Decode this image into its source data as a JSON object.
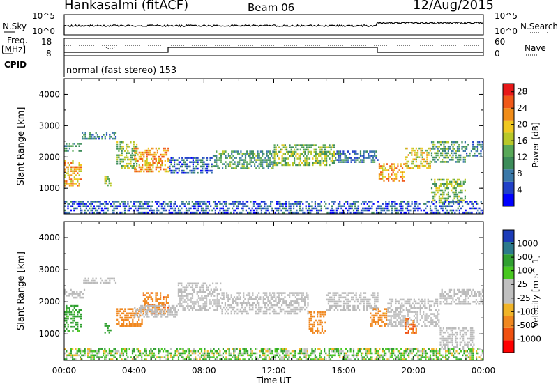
{
  "header": {
    "station": "Hankasalmi (fitACF)",
    "beam": "Beam 06",
    "date": "12/Aug/2015"
  },
  "strip_labels": {
    "nsky": "N.Sky",
    "nsearch": "N.Search",
    "freq": "Freq.",
    "freq_unit": "[MHz]",
    "nave": "Nave",
    "cpid": "CPID",
    "cpid_value": "normal (fast stereo) 153",
    "noise_ticks": [
      "10^5",
      "10^0"
    ],
    "freq_ticks": [
      "18",
      "8"
    ],
    "nave_ticks": [
      "60",
      "0"
    ]
  },
  "colors": {
    "noise_line": "#000000",
    "power_scale": [
      "#0000ff",
      "#2040c8",
      "#3a78a8",
      "#3c8c5a",
      "#58a858",
      "#b8c828",
      "#f0c820",
      "#f08c18",
      "#f05818",
      "#e81818"
    ],
    "velocity_scale": [
      "#ff0000",
      "#f05010",
      "#f08820",
      "#f0b428",
      "#c0c0c0",
      "#c0c0c0",
      "#48c820",
      "#30a030",
      "#2c7a8c",
      "#1c3cb8"
    ],
    "ground_scatter": "#bbbbbb"
  },
  "chart_data": [
    {
      "type": "heatmap",
      "title": "Power",
      "xlabel": "",
      "ylabel": "Slant Range [km]",
      "xlim": [
        0,
        24
      ],
      "ylim": [
        180,
        4500
      ],
      "x_ticks": [],
      "y_ticks": [
        "1000",
        "2000",
        "3000",
        "4000"
      ],
      "colorbar": {
        "label": "Power [dB]",
        "ticks": [
          "4",
          "8",
          "12",
          "16",
          "20",
          "24",
          "28"
        ],
        "range": [
          0,
          30
        ]
      },
      "echo_bands": [
        {
          "t_start": 0.0,
          "t_end": 1.0,
          "r_low": 1050,
          "r_high": 1900,
          "value": 20
        },
        {
          "t_start": 0.0,
          "t_end": 1.0,
          "r_low": 2150,
          "r_high": 2450,
          "value": 10
        },
        {
          "t_start": 1.0,
          "t_end": 3.0,
          "r_low": 2550,
          "r_high": 2800,
          "value": 9
        },
        {
          "t_start": 2.3,
          "t_end": 2.7,
          "r_low": 1050,
          "r_high": 1400,
          "value": 16
        },
        {
          "t_start": 3.0,
          "t_end": 4.2,
          "r_low": 1600,
          "r_high": 2500,
          "value": 14
        },
        {
          "t_start": 4.0,
          "t_end": 6.0,
          "r_low": 1500,
          "r_high": 2300,
          "value": 22
        },
        {
          "t_start": 6.0,
          "t_end": 8.5,
          "r_low": 1450,
          "r_high": 2000,
          "value": 7
        },
        {
          "t_start": 8.5,
          "t_end": 12.0,
          "r_low": 1600,
          "r_high": 2200,
          "value": 11
        },
        {
          "t_start": 12.0,
          "t_end": 15.5,
          "r_low": 1700,
          "r_high": 2400,
          "value": 14
        },
        {
          "t_start": 15.5,
          "t_end": 18.0,
          "r_low": 1800,
          "r_high": 2200,
          "value": 8
        },
        {
          "t_start": 18.0,
          "t_end": 19.5,
          "r_low": 1200,
          "r_high": 1800,
          "value": 22
        },
        {
          "t_start": 19.5,
          "t_end": 21.0,
          "r_low": 1600,
          "r_high": 2300,
          "value": 18
        },
        {
          "t_start": 21.0,
          "t_end": 23.0,
          "r_low": 1800,
          "r_high": 2500,
          "value": 12
        },
        {
          "t_start": 21.0,
          "t_end": 23.0,
          "r_low": 500,
          "r_high": 1300,
          "value": 14
        },
        {
          "t_start": 23.0,
          "t_end": 24.0,
          "r_low": 2000,
          "r_high": 2500,
          "value": 9
        },
        {
          "t_start": 0.0,
          "t_end": 24.0,
          "r_low": 180,
          "r_high": 600,
          "value": 6
        }
      ]
    },
    {
      "type": "heatmap",
      "title": "Velocity",
      "xlabel": "Time UT",
      "ylabel": "Slant Range [km]",
      "xlim": [
        0,
        24
      ],
      "ylim": [
        180,
        4500
      ],
      "x_ticks": [
        "00:00",
        "04:00",
        "08:00",
        "12:00",
        "16:00",
        "20:00",
        "00:00"
      ],
      "y_ticks": [
        "1000",
        "2000",
        "3000",
        "4000"
      ],
      "colorbar": {
        "label": "Velocity [m s^-1]",
        "ticks": [
          "1000",
          "500",
          "100",
          "25",
          "-25",
          "-100",
          "-500",
          "-1000"
        ]
      },
      "echo_bands": [
        {
          "t_start": 0.0,
          "t_end": 1.0,
          "r_low": 1050,
          "r_high": 1900,
          "value": 200,
          "kind": "ionospheric"
        },
        {
          "t_start": 0.0,
          "t_end": 1.2,
          "r_low": 2100,
          "r_high": 2400,
          "value": 0,
          "kind": "ground"
        },
        {
          "t_start": 1.0,
          "t_end": 3.0,
          "r_low": 2550,
          "r_high": 2750,
          "value": 0,
          "kind": "ground"
        },
        {
          "t_start": 2.3,
          "t_end": 2.7,
          "r_low": 1000,
          "r_high": 1350,
          "value": 300,
          "kind": "ionospheric"
        },
        {
          "t_start": 3.0,
          "t_end": 4.5,
          "r_low": 1200,
          "r_high": 1800,
          "value": -300,
          "kind": "ionospheric"
        },
        {
          "t_start": 4.5,
          "t_end": 6.0,
          "r_low": 1600,
          "r_high": 2300,
          "value": -400,
          "kind": "ionospheric"
        },
        {
          "t_start": 4.0,
          "t_end": 6.5,
          "r_low": 1500,
          "r_high": 1900,
          "value": 0,
          "kind": "ground"
        },
        {
          "t_start": 6.5,
          "t_end": 9.0,
          "r_low": 1700,
          "r_high": 2600,
          "value": 0,
          "kind": "ground"
        },
        {
          "t_start": 9.0,
          "t_end": 14.0,
          "r_low": 1600,
          "r_high": 2300,
          "value": 0,
          "kind": "ground"
        },
        {
          "t_start": 14.0,
          "t_end": 15.0,
          "r_low": 1000,
          "r_high": 1700,
          "value": -300,
          "kind": "ionospheric"
        },
        {
          "t_start": 15.0,
          "t_end": 18.0,
          "r_low": 1700,
          "r_high": 2300,
          "value": 0,
          "kind": "ground"
        },
        {
          "t_start": 17.5,
          "t_end": 18.5,
          "r_low": 1200,
          "r_high": 1800,
          "value": -200,
          "kind": "ionospheric"
        },
        {
          "t_start": 18.5,
          "t_end": 21.5,
          "r_low": 1200,
          "r_high": 2100,
          "value": 0,
          "kind": "ground"
        },
        {
          "t_start": 19.5,
          "t_end": 20.2,
          "r_low": 1000,
          "r_high": 1500,
          "value": -500,
          "kind": "ionospheric"
        },
        {
          "t_start": 21.5,
          "t_end": 24.0,
          "r_low": 1900,
          "r_high": 2400,
          "value": 0,
          "kind": "ground"
        },
        {
          "t_start": 21.5,
          "t_end": 23.5,
          "r_low": 500,
          "r_high": 1200,
          "value": 0,
          "kind": "ground"
        },
        {
          "t_start": 0.0,
          "t_end": 24.0,
          "r_low": 180,
          "r_high": 550,
          "value": 60,
          "kind": "ionospheric"
        }
      ]
    }
  ]
}
